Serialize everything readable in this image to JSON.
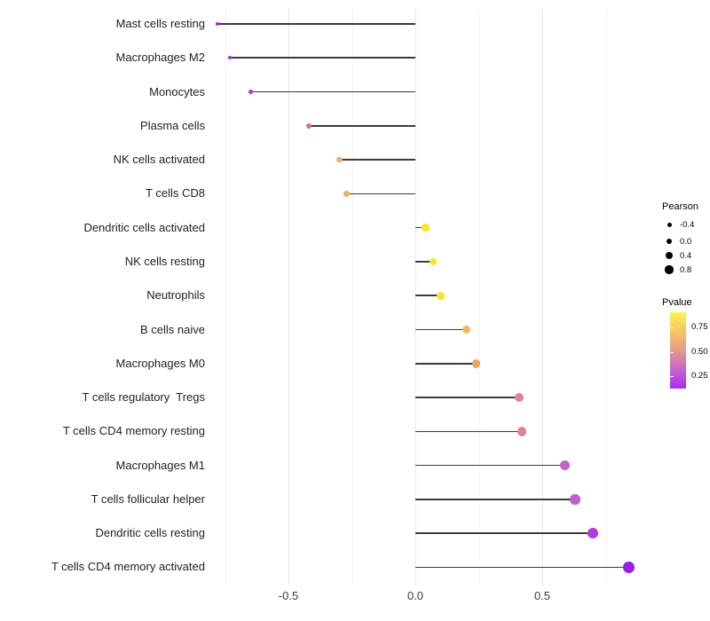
{
  "chart_data": {
    "type": "lollipop",
    "orientation": "horizontal",
    "title": "",
    "xlabel": "",
    "ylabel": "",
    "xlim": [
      -0.82,
      0.86
    ],
    "grid": true,
    "legend_position": "right",
    "x_ticks": [
      {
        "label": "-0.5",
        "value": -0.5
      },
      {
        "label": "0.0",
        "value": 0.0
      },
      {
        "label": "0.5",
        "value": 0.5
      }
    ],
    "x_minor_gridlines": [
      -0.75,
      -0.25,
      0.25,
      0.75
    ],
    "baseline_value": 0.0,
    "rows": [
      {
        "label": "Mast cells resting",
        "pearson": -0.78,
        "color": "#A02BDB"
      },
      {
        "label": "Macrophages M2",
        "pearson": -0.73,
        "color": "#A42FD9"
      },
      {
        "label": "Monocytes",
        "pearson": -0.65,
        "color": "#AA38D5"
      },
      {
        "label": "Plasma cells",
        "pearson": -0.42,
        "color": "#D0718F"
      },
      {
        "label": "NK cells activated",
        "pearson": -0.3,
        "color": "#F0AF6B"
      },
      {
        "label": "T cells CD8",
        "pearson": -0.27,
        "color": "#EFAC63"
      },
      {
        "label": "Dendritic cells activated",
        "pearson": 0.04,
        "color": "#F8E52C"
      },
      {
        "label": "NK cells resting",
        "pearson": 0.07,
        "color": "#F8E42D"
      },
      {
        "label": "Neutrophils",
        "pearson": 0.1,
        "color": "#F8E32B"
      },
      {
        "label": "B cells naive",
        "pearson": 0.2,
        "color": "#F0B75E"
      },
      {
        "label": "Macrophages M0",
        "pearson": 0.24,
        "color": "#EDA65E"
      },
      {
        "label": "T cells regulatory  Tregs",
        "pearson": 0.41,
        "color": "#E0849B"
      },
      {
        "label": "T cells CD4 memory resting",
        "pearson": 0.42,
        "color": "#DF8598"
      },
      {
        "label": "Macrophages M1",
        "pearson": 0.59,
        "color": "#C45FCB"
      },
      {
        "label": "T cells follicular helper",
        "pearson": 0.63,
        "color": "#C160CE"
      },
      {
        "label": "Dendritic cells resting",
        "pearson": 0.7,
        "color": "#B13DD8"
      },
      {
        "label": "T cells CD4 memory activated",
        "pearson": 0.84,
        "color": "#9A1FE3"
      }
    ]
  },
  "legend": {
    "pearson": {
      "title": "Pearson",
      "dot_color": "#000000",
      "items": [
        {
          "label": "-0.4",
          "size": 5.0
        },
        {
          "label": "0.0",
          "size": 6.5
        },
        {
          "label": "0.4",
          "size": 8.0
        },
        {
          "label": "0.8",
          "size": 9.2
        }
      ]
    },
    "pvalue": {
      "title": "Pvalue",
      "ticks": [
        "0.75",
        "0.50",
        "0.25"
      ],
      "gradient": [
        "#FCF44D",
        "#F5C669",
        "#E49A87",
        "#C765CE",
        "#A92CF4"
      ]
    }
  },
  "style": {
    "stem_color": "#3B3B3B",
    "grid_major_color": "#E7E7E7",
    "grid_minor_color": "#F4F4F4",
    "axis_text_color": "#3d3d3d"
  }
}
